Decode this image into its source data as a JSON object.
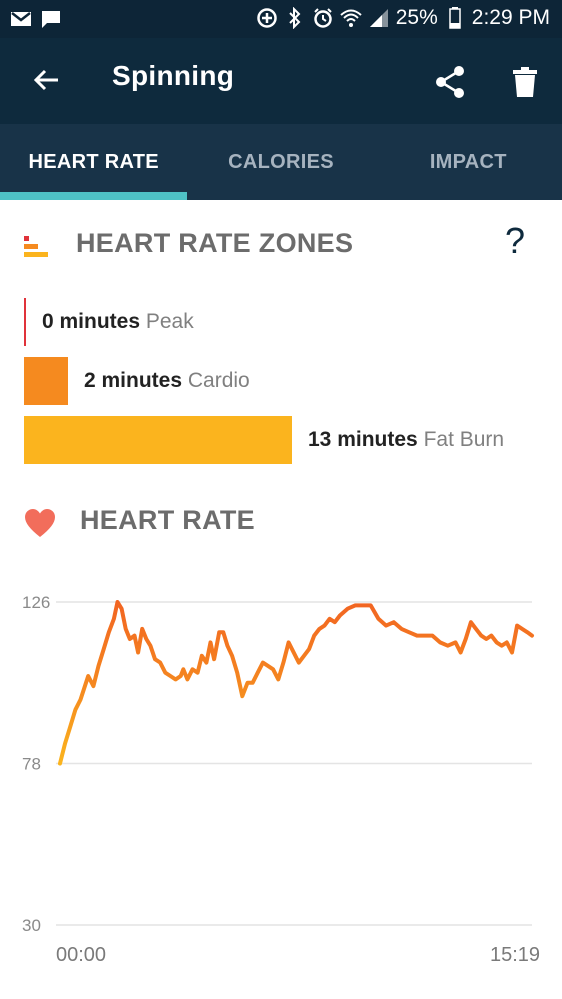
{
  "status_bar": {
    "battery": "25%",
    "time": "2:29 PM",
    "icons": [
      "gmail-icon",
      "message-icon",
      "data-saver-icon",
      "bluetooth-icon",
      "alarm-icon",
      "wifi-icon",
      "signal-icon",
      "battery-icon"
    ]
  },
  "app_bar": {
    "title": "Spinning",
    "icons": [
      "back-arrow-icon",
      "share-icon",
      "trash-icon"
    ]
  },
  "tabs": [
    {
      "label": "HEART RATE",
      "active": true
    },
    {
      "label": "CALORIES",
      "active": false
    },
    {
      "label": "IMPACT",
      "active": false
    }
  ],
  "zones_section": {
    "title": "HEART RATE ZONES",
    "help": "?",
    "zones": [
      {
        "minutes_text": "0 minutes",
        "label": "Peak",
        "minutes": 0,
        "color": "#e0323a"
      },
      {
        "minutes_text": "2 minutes",
        "label": "Cardio",
        "minutes": 2,
        "color": "#f58a1f"
      },
      {
        "minutes_text": "13 minutes",
        "label": "Fat Burn",
        "minutes": 13,
        "color": "#fbb41e"
      }
    ]
  },
  "heart_rate_section": {
    "title": "HEART RATE"
  },
  "chart_data": {
    "type": "line",
    "y_ticks": [
      126,
      78,
      30
    ],
    "ylim": [
      30,
      126
    ],
    "x_labels": [
      "00:00",
      "15:19"
    ],
    "x_range_seconds": [
      0,
      919
    ],
    "grid": true,
    "series": [
      {
        "colors": [
          "#fbb41e",
          "#f26522"
        ],
        "points": [
          [
            0,
            78
          ],
          [
            10,
            84
          ],
          [
            20,
            89
          ],
          [
            30,
            94
          ],
          [
            40,
            97
          ],
          [
            55,
            104
          ],
          [
            65,
            101
          ],
          [
            75,
            107
          ],
          [
            85,
            112
          ],
          [
            95,
            117
          ],
          [
            105,
            121
          ],
          [
            112,
            126
          ],
          [
            120,
            124
          ],
          [
            128,
            118
          ],
          [
            136,
            115
          ],
          [
            145,
            116
          ],
          [
            152,
            111
          ],
          [
            160,
            118
          ],
          [
            168,
            115
          ],
          [
            176,
            113
          ],
          [
            185,
            109
          ],
          [
            195,
            108
          ],
          [
            205,
            105
          ],
          [
            215,
            104
          ],
          [
            225,
            103
          ],
          [
            235,
            104
          ],
          [
            240,
            106
          ],
          [
            248,
            103
          ],
          [
            258,
            106
          ],
          [
            268,
            105
          ],
          [
            276,
            110
          ],
          [
            285,
            108
          ],
          [
            293,
            114
          ],
          [
            300,
            109
          ],
          [
            310,
            117
          ],
          [
            318,
            117
          ],
          [
            326,
            113
          ],
          [
            335,
            110
          ],
          [
            345,
            105
          ],
          [
            355,
            98
          ],
          [
            365,
            102
          ],
          [
            375,
            102
          ],
          [
            385,
            105
          ],
          [
            395,
            108
          ],
          [
            405,
            107
          ],
          [
            415,
            106
          ],
          [
            425,
            103
          ],
          [
            435,
            108
          ],
          [
            445,
            114
          ],
          [
            455,
            111
          ],
          [
            465,
            108
          ],
          [
            475,
            110
          ],
          [
            485,
            112
          ],
          [
            495,
            116
          ],
          [
            505,
            118
          ],
          [
            515,
            119
          ],
          [
            525,
            121
          ],
          [
            535,
            120
          ],
          [
            545,
            122
          ],
          [
            560,
            124
          ],
          [
            575,
            125
          ],
          [
            590,
            125
          ],
          [
            605,
            125
          ],
          [
            620,
            121
          ],
          [
            635,
            119
          ],
          [
            650,
            120
          ],
          [
            665,
            118
          ],
          [
            680,
            117
          ],
          [
            695,
            116
          ],
          [
            710,
            116
          ],
          [
            725,
            116
          ],
          [
            740,
            114
          ],
          [
            755,
            113
          ],
          [
            770,
            114
          ],
          [
            780,
            111
          ],
          [
            790,
            115
          ],
          [
            800,
            120
          ],
          [
            810,
            118
          ],
          [
            820,
            116
          ],
          [
            830,
            115
          ],
          [
            840,
            116
          ],
          [
            850,
            114
          ],
          [
            860,
            113
          ],
          [
            870,
            114
          ],
          [
            880,
            111
          ],
          [
            890,
            119
          ],
          [
            900,
            118
          ],
          [
            910,
            117
          ],
          [
            919,
            116
          ]
        ]
      }
    ]
  }
}
